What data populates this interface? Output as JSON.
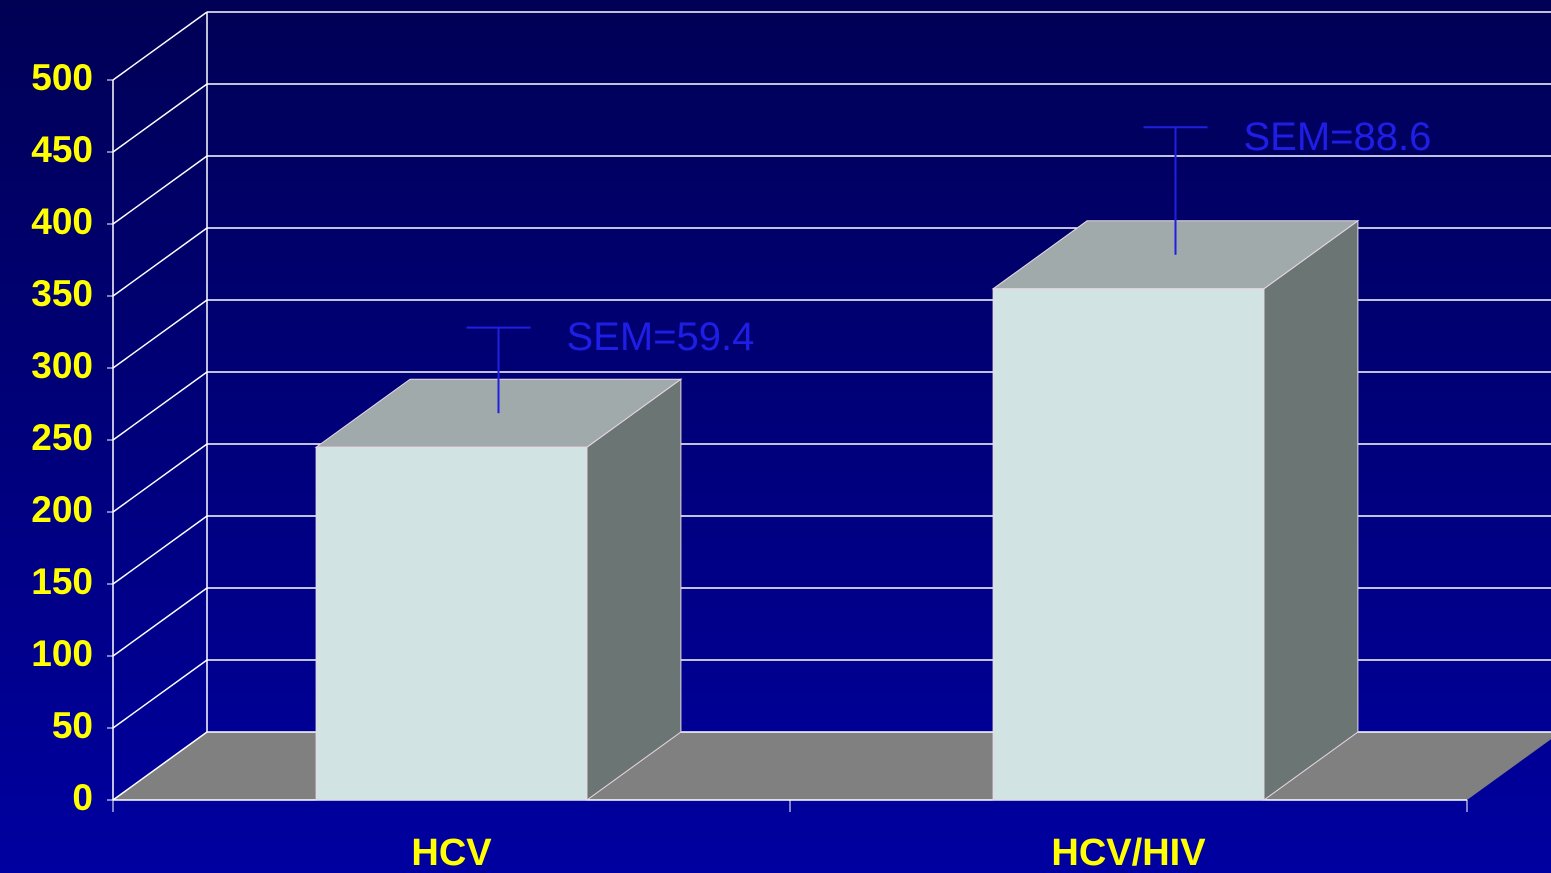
{
  "chart_data": {
    "type": "bar3d",
    "categories": [
      "HCV",
      "HCV/HIV"
    ],
    "values": [
      245,
      355
    ],
    "errors": [
      59.4,
      88.6
    ],
    "error_labels": [
      "SEM=59.4",
      "SEM=88.6"
    ],
    "ylim": [
      0,
      500
    ],
    "yticks": [
      0,
      50,
      100,
      150,
      200,
      250,
      300,
      350,
      400,
      450,
      500
    ],
    "grid": true,
    "color": "#d1e3e3"
  }
}
